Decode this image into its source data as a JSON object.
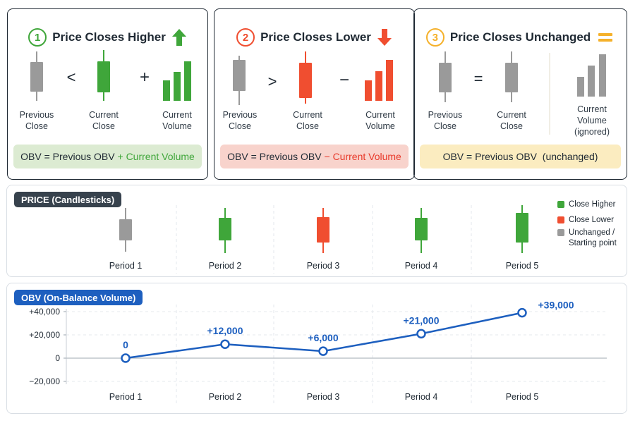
{
  "colors": {
    "up": "#3fa63a",
    "down": "#f04e30",
    "neutral": "#9a9a9a",
    "obv_line": "#1d5fbf",
    "card1_bg": "#f1f7ec",
    "card1_border": "#dfe9d7",
    "card1_formula_bg": "#dcebd2",
    "card2_bg": "#fdecea",
    "card2_border": "#f5d6d1",
    "card2_formula_bg": "#f8d3cc",
    "card3_bg": "#fdf7e8",
    "card3_border": "#f3e8c8",
    "card3_formula_bg": "#fbecc0",
    "card3_accent": "#f5b12b",
    "price_tag_bg": "#37424d",
    "obv_tag_bg": "#1d5fbf"
  },
  "rules": [
    {
      "number": "1",
      "title": "Price Closes Higher",
      "arrow_icon": "arrow-up-icon",
      "operator": "<",
      "volume_operator": "+",
      "labels": {
        "previous": "Previous\nClose",
        "current": "Current\nClose",
        "volume": "Current\nVolume"
      },
      "formula_prefix": "OBV = Previous OBV",
      "formula_suffix": " + Current Volume"
    },
    {
      "number": "2",
      "title": "Price Closes Lower",
      "arrow_icon": "arrow-down-icon",
      "operator": ">",
      "volume_operator": "−",
      "labels": {
        "previous": "Previous\nClose",
        "current": "Current\nClose",
        "volume": "Current\nVolume"
      },
      "formula_prefix": "OBV = Previous OBV",
      "formula_suffix": " − Current Volume"
    },
    {
      "number": "3",
      "title": "Price Closes Unchanged",
      "arrow_icon": "equals-icon",
      "operator": "=",
      "volume_operator": "",
      "labels": {
        "previous": "Previous\nClose",
        "current": "Current\nClose",
        "volume": "Current\nVolume\n(ignored)"
      },
      "formula_prefix": "OBV = Previous OBV",
      "formula_suffix": "  (unchanged)"
    }
  ],
  "price_panel": {
    "tag": "PRICE (Candlesticks)",
    "periods": [
      "Period 1",
      "Period 2",
      "Period 3",
      "Period 4",
      "Period 5"
    ],
    "directions": [
      "neutral",
      "up",
      "down",
      "up",
      "up"
    ],
    "legend": [
      {
        "color_key": "up",
        "label": "Close Higher"
      },
      {
        "color_key": "down",
        "label": "Close Lower"
      },
      {
        "color_key": "neutral",
        "label": "Unchanged /\nStarting point"
      }
    ]
  },
  "chart_data": {
    "type": "line",
    "title": "OBV (On-Balance Volume)",
    "x": [
      "Period 1",
      "Period 2",
      "Period 3",
      "Period 4",
      "Period 5"
    ],
    "series": [
      {
        "values": [
          0,
          12000,
          6000,
          21000,
          39000
        ]
      }
    ],
    "data_labels": [
      "0",
      "+12,000",
      "+6,000",
      "+21,000",
      "+39,000"
    ],
    "yticks": [
      40000,
      20000,
      0,
      -20000
    ],
    "ytick_labels": [
      "+40,000",
      "+20,000",
      "0",
      "−20,000"
    ],
    "ylim": [
      -20000,
      40000
    ],
    "xlabel": "",
    "ylabel": "",
    "grid": true
  }
}
